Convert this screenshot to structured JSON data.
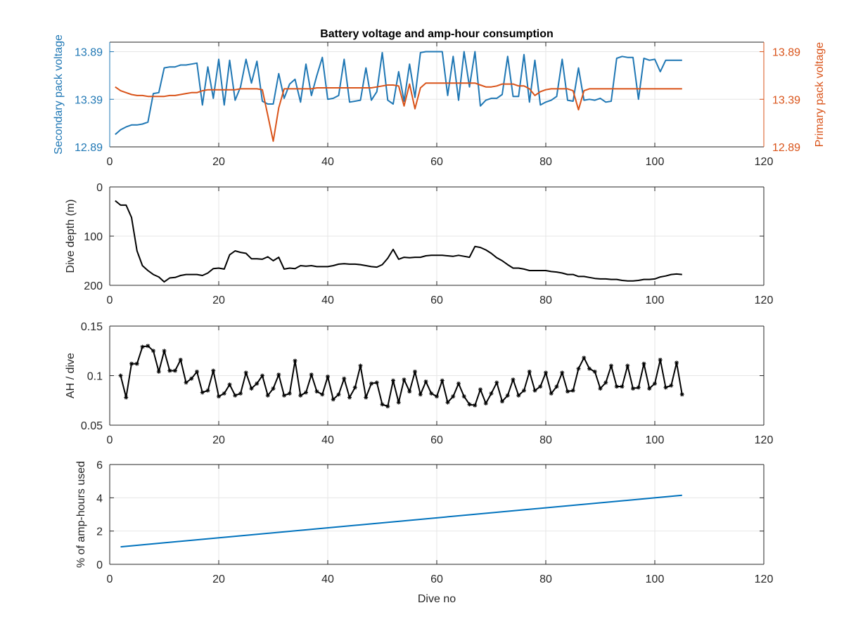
{
  "figure_title": "Battery voltage and amp-hour consumption",
  "colors": {
    "secondary": "#1f77b4",
    "primary": "#d95319",
    "black": "#000000",
    "blue_line": "#0072bd",
    "grid": "#e6e6e6"
  },
  "chart_data": [
    {
      "type": "line",
      "title": "Battery voltage and amp-hour consumption",
      "xlabel": "",
      "ylabel": "Secondary pack voltage",
      "y2label": "Primary pack voltage",
      "xlim": [
        0,
        120
      ],
      "xticks": [
        0,
        20,
        40,
        60,
        80,
        100,
        120
      ],
      "ylim": [
        12.89,
        13.99
      ],
      "yticks": [
        "12.89",
        "13.39",
        "13.89"
      ],
      "y2lim": [
        12.89,
        13.99
      ],
      "y2ticks": [
        "12.89",
        "13.39",
        "13.89"
      ],
      "grid": true,
      "series": [
        {
          "axis": "left",
          "color": "#1f77b4",
          "x": [
            1,
            2,
            3,
            4,
            5,
            6,
            7,
            8,
            9,
            10,
            11,
            12,
            13,
            14,
            15,
            16,
            17,
            18,
            19,
            20,
            21,
            22,
            23,
            24,
            25,
            26,
            27,
            28,
            29,
            30,
            31,
            32,
            33,
            34,
            35,
            36,
            37,
            38,
            39,
            40,
            41,
            42,
            43,
            44,
            45,
            46,
            47,
            48,
            49,
            50,
            51,
            52,
            53,
            54,
            55,
            56,
            57,
            58,
            59,
            60,
            61,
            62,
            63,
            64,
            65,
            66,
            67,
            68,
            69,
            70,
            71,
            72,
            73,
            74,
            75,
            76,
            77,
            78,
            79,
            80,
            81,
            82,
            83,
            84,
            85,
            86,
            87,
            88,
            89,
            90,
            91,
            92,
            93,
            94,
            95,
            96,
            97,
            98,
            99,
            100,
            101,
            102,
            103,
            104,
            105
          ],
          "y": [
            13.02,
            13.07,
            13.1,
            13.12,
            13.12,
            13.13,
            13.15,
            13.45,
            13.46,
            13.72,
            13.73,
            13.73,
            13.75,
            13.75,
            13.76,
            13.77,
            13.33,
            13.73,
            13.4,
            13.81,
            13.33,
            13.8,
            13.38,
            13.52,
            13.81,
            13.56,
            13.79,
            13.37,
            13.34,
            13.34,
            13.66,
            13.4,
            13.55,
            13.6,
            13.36,
            13.76,
            13.43,
            13.64,
            13.83,
            13.39,
            13.4,
            13.43,
            13.81,
            13.36,
            13.37,
            13.38,
            13.72,
            13.38,
            13.47,
            13.88,
            13.38,
            13.34,
            13.68,
            13.37,
            13.76,
            13.41,
            13.88,
            13.89,
            13.89,
            13.89,
            13.89,
            13.43,
            13.84,
            13.38,
            13.89,
            13.52,
            13.89,
            13.32,
            13.38,
            13.4,
            13.4,
            13.44,
            13.84,
            13.42,
            13.42,
            13.86,
            13.36,
            13.8,
            13.33,
            13.36,
            13.38,
            13.42,
            13.81,
            13.38,
            13.37,
            13.72,
            13.38,
            13.39,
            13.38,
            13.4,
            13.36,
            13.37,
            13.82,
            13.84,
            13.83,
            13.83,
            13.39,
            13.82,
            13.8,
            13.81,
            13.68,
            13.8,
            13.8,
            13.8,
            13.8
          ]
        },
        {
          "axis": "right",
          "color": "#d95319",
          "x": [
            1,
            2,
            3,
            4,
            5,
            6,
            7,
            8,
            9,
            10,
            11,
            12,
            13,
            14,
            15,
            16,
            17,
            18,
            19,
            20,
            21,
            22,
            23,
            24,
            25,
            26,
            27,
            28,
            29,
            30,
            31,
            32,
            33,
            34,
            35,
            36,
            37,
            38,
            39,
            40,
            41,
            42,
            43,
            44,
            45,
            46,
            47,
            48,
            49,
            50,
            51,
            52,
            53,
            54,
            55,
            56,
            57,
            58,
            59,
            60,
            61,
            62,
            63,
            64,
            65,
            66,
            67,
            68,
            69,
            70,
            71,
            72,
            73,
            74,
            75,
            76,
            77,
            78,
            79,
            80,
            81,
            82,
            83,
            84,
            85,
            86,
            87,
            88,
            89,
            90,
            91,
            92,
            93,
            94,
            95,
            96,
            97,
            98,
            99,
            100,
            101,
            102,
            103,
            104,
            105
          ],
          "y": [
            13.52,
            13.48,
            13.46,
            13.44,
            13.43,
            13.43,
            13.42,
            13.42,
            13.42,
            13.42,
            13.43,
            13.43,
            13.44,
            13.45,
            13.46,
            13.46,
            13.48,
            13.49,
            13.49,
            13.49,
            13.49,
            13.49,
            13.49,
            13.5,
            13.5,
            13.5,
            13.5,
            13.49,
            13.22,
            12.95,
            13.3,
            13.5,
            13.5,
            13.5,
            13.5,
            13.5,
            13.5,
            13.51,
            13.51,
            13.51,
            13.51,
            13.51,
            13.51,
            13.51,
            13.51,
            13.51,
            13.51,
            13.51,
            13.52,
            13.53,
            13.54,
            13.54,
            13.53,
            13.32,
            13.55,
            13.29,
            13.51,
            13.56,
            13.56,
            13.56,
            13.56,
            13.56,
            13.56,
            13.56,
            13.56,
            13.56,
            13.56,
            13.54,
            13.52,
            13.52,
            13.53,
            13.55,
            13.55,
            13.55,
            13.53,
            13.53,
            13.5,
            13.43,
            13.47,
            13.49,
            13.5,
            13.5,
            13.5,
            13.5,
            13.48,
            13.28,
            13.48,
            13.5,
            13.5,
            13.5,
            13.5,
            13.5,
            13.5,
            13.5,
            13.5,
            13.5,
            13.5,
            13.5,
            13.5,
            13.5,
            13.5,
            13.5,
            13.5,
            13.5,
            13.5
          ]
        }
      ]
    },
    {
      "type": "line",
      "title": "",
      "xlabel": "",
      "ylabel": "Dive depth (m)",
      "xlim": [
        0,
        120
      ],
      "xticks": [
        0,
        20,
        40,
        60,
        80,
        100,
        120
      ],
      "ylim": [
        0,
        200
      ],
      "yreversed": true,
      "yticks": [
        0,
        100,
        200
      ],
      "grid": true,
      "series": [
        {
          "color": "#000000",
          "marker": "",
          "x": [
            1,
            2,
            3,
            4,
            5,
            6,
            7,
            8,
            9,
            10,
            11,
            12,
            13,
            14,
            15,
            16,
            17,
            18,
            19,
            20,
            21,
            22,
            23,
            24,
            25,
            26,
            27,
            28,
            29,
            30,
            31,
            32,
            33,
            34,
            35,
            36,
            37,
            38,
            39,
            40,
            41,
            42,
            43,
            44,
            45,
            46,
            47,
            48,
            49,
            50,
            51,
            52,
            53,
            54,
            55,
            56,
            57,
            58,
            59,
            60,
            61,
            62,
            63,
            64,
            65,
            66,
            67,
            68,
            69,
            70,
            71,
            72,
            73,
            74,
            75,
            76,
            77,
            78,
            79,
            80,
            81,
            82,
            83,
            84,
            85,
            86,
            87,
            88,
            89,
            90,
            91,
            92,
            93,
            94,
            95,
            96,
            97,
            98,
            99,
            100,
            101,
            102,
            103,
            104,
            105
          ],
          "y": [
            28,
            37,
            37,
            62,
            130,
            160,
            170,
            178,
            183,
            193,
            185,
            184,
            180,
            178,
            178,
            178,
            180,
            175,
            166,
            165,
            167,
            138,
            130,
            133,
            135,
            146,
            146,
            147,
            142,
            150,
            143,
            167,
            165,
            166,
            160,
            161,
            160,
            162,
            162,
            162,
            160,
            157,
            156,
            157,
            157,
            158,
            160,
            162,
            163,
            158,
            145,
            127,
            147,
            143,
            144,
            143,
            143,
            140,
            139,
            139,
            139,
            140,
            141,
            139,
            141,
            143,
            121,
            123,
            128,
            135,
            144,
            150,
            158,
            165,
            165,
            167,
            170,
            170,
            170,
            170,
            172,
            173,
            175,
            178,
            178,
            182,
            182,
            184,
            186,
            187,
            187,
            188,
            188,
            190,
            191,
            191,
            190,
            188,
            188,
            187,
            183,
            181,
            178,
            177,
            178
          ]
        }
      ]
    },
    {
      "type": "line",
      "title": "",
      "xlabel": "",
      "ylabel": "AH / dive",
      "xlim": [
        0,
        120
      ],
      "xticks": [
        0,
        20,
        40,
        60,
        80,
        100,
        120
      ],
      "ylim": [
        0.05,
        0.15
      ],
      "yticks": [
        "0.05",
        "0.1",
        "0.15"
      ],
      "grid": true,
      "series": [
        {
          "color": "#000000",
          "marker": "*",
          "x": [
            2,
            3,
            4,
            5,
            6,
            7,
            8,
            9,
            10,
            11,
            12,
            13,
            14,
            15,
            16,
            17,
            18,
            19,
            20,
            21,
            22,
            23,
            24,
            25,
            26,
            27,
            28,
            29,
            30,
            31,
            32,
            33,
            34,
            35,
            36,
            37,
            38,
            39,
            40,
            41,
            42,
            43,
            44,
            45,
            46,
            47,
            48,
            49,
            50,
            51,
            52,
            53,
            54,
            55,
            56,
            57,
            58,
            59,
            60,
            61,
            62,
            63,
            64,
            65,
            66,
            67,
            68,
            69,
            70,
            71,
            72,
            73,
            74,
            75,
            76,
            77,
            78,
            79,
            80,
            81,
            82,
            83,
            84,
            85,
            86,
            87,
            88,
            89,
            90,
            91,
            92,
            93,
            94,
            95,
            96,
            97,
            98,
            99,
            100,
            101,
            102,
            103,
            104,
            105
          ],
          "y": [
            0.1,
            0.078,
            0.112,
            0.112,
            0.129,
            0.13,
            0.125,
            0.104,
            0.125,
            0.105,
            0.105,
            0.116,
            0.093,
            0.097,
            0.104,
            0.083,
            0.085,
            0.105,
            0.079,
            0.082,
            0.091,
            0.08,
            0.082,
            0.103,
            0.087,
            0.092,
            0.1,
            0.08,
            0.087,
            0.101,
            0.08,
            0.082,
            0.115,
            0.08,
            0.083,
            0.101,
            0.084,
            0.081,
            0.099,
            0.076,
            0.081,
            0.097,
            0.078,
            0.088,
            0.11,
            0.078,
            0.092,
            0.093,
            0.071,
            0.069,
            0.095,
            0.073,
            0.096,
            0.084,
            0.104,
            0.081,
            0.094,
            0.082,
            0.079,
            0.095,
            0.073,
            0.079,
            0.092,
            0.079,
            0.071,
            0.07,
            0.086,
            0.072,
            0.082,
            0.093,
            0.074,
            0.08,
            0.096,
            0.08,
            0.085,
            0.104,
            0.085,
            0.089,
            0.103,
            0.082,
            0.089,
            0.103,
            0.084,
            0.085,
            0.107,
            0.118,
            0.107,
            0.104,
            0.087,
            0.093,
            0.11,
            0.089,
            0.089,
            0.11,
            0.087,
            0.088,
            0.112,
            0.087,
            0.092,
            0.116,
            0.088,
            0.09,
            0.113,
            0.081
          ]
        }
      ]
    },
    {
      "type": "line",
      "title": "",
      "xlabel": "Dive no",
      "ylabel": "% of amp-hours used",
      "xlim": [
        0,
        120
      ],
      "xticks": [
        0,
        20,
        40,
        60,
        80,
        100,
        120
      ],
      "ylim": [
        0,
        6
      ],
      "yticks": [
        0,
        2,
        4,
        6
      ],
      "grid": true,
      "series": [
        {
          "color": "#0072bd",
          "x": [
            2,
            105
          ],
          "y": [
            1.05,
            4.15
          ]
        }
      ]
    }
  ]
}
